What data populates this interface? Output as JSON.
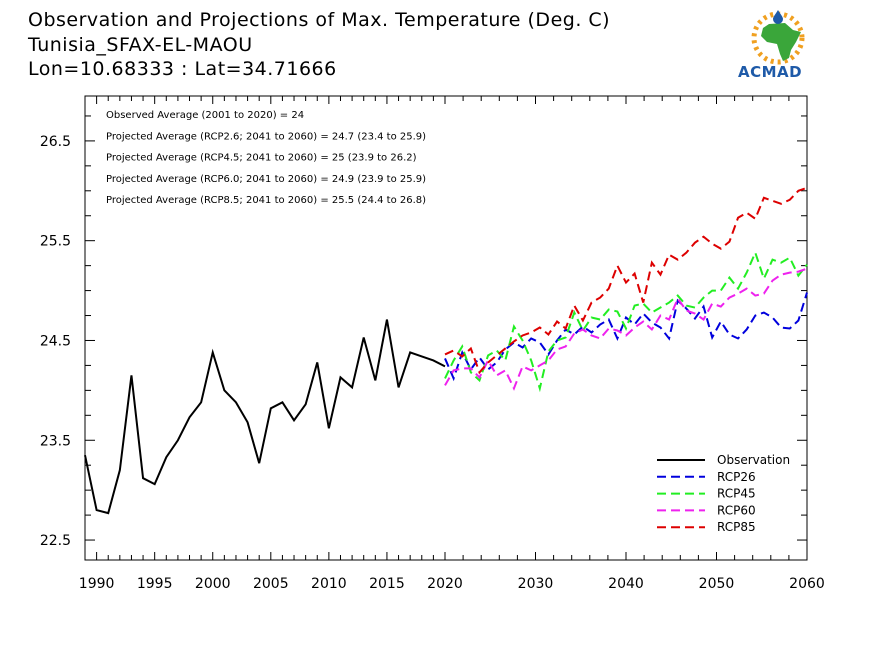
{
  "header": {
    "title": "Observation and Projections of Max. Temperature (Deg. C)",
    "station": "Tunisia_SFAX-EL-MAOU",
    "coords": "Lon=10.68333 : Lat=34.71666"
  },
  "logo": {
    "text": "ACMAD",
    "colors": {
      "orange": "#f0a020",
      "green": "#3aa63a",
      "blue": "#1e5aa8"
    }
  },
  "chart_data": {
    "type": "line",
    "title": "Observation and Projections of Max. Temperature (Deg. C)",
    "xlabel": "",
    "ylabel": "",
    "xlim": [
      1989,
      2060
    ],
    "ylim": [
      22.3,
      26.95
    ],
    "x_ticks": [
      "1990",
      "1995",
      "2000",
      "2005",
      "2010",
      "2015",
      "2020",
      "2030",
      "2040",
      "2050",
      "2060"
    ],
    "y_ticks": [
      "22.5",
      "23.5",
      "24.5",
      "25.5",
      "26.5"
    ],
    "grid": false,
    "legend_position": "bottom-right",
    "stats": [
      "Observed Average (2001 to 2020) = 24",
      "Projected Average (RCP2.6; 2041 to 2060) = 24.7 (23.4 to 25.9)",
      "Projected Average (RCP4.5; 2041 to 2060) = 25 (23.9 to 26.2)",
      "Projected Average (RCP6.0; 2041 to 2060) = 24.9 (23.9 to 25.9)",
      "Projected Average (RCP8.5; 2041 to 2060) = 25.5 (24.4 to 26.8)"
    ],
    "observation": {
      "name": "Observation",
      "color": "#000000",
      "dashed": false,
      "x": [
        1989,
        1990,
        1991,
        1992,
        1993,
        1994,
        1995,
        1996,
        1997,
        1998,
        1999,
        2000,
        2001,
        2002,
        2003,
        2004,
        2005,
        2006,
        2007,
        2008,
        2009,
        2010,
        2011,
        2012,
        2013,
        2014,
        2015,
        2016,
        2017,
        2018,
        2019,
        2020
      ],
      "values": [
        23.35,
        22.8,
        22.77,
        23.2,
        24.15,
        23.12,
        23.06,
        23.33,
        23.5,
        23.73,
        23.88,
        24.38,
        24.0,
        23.88,
        23.68,
        23.27,
        23.82,
        23.88,
        23.7,
        23.86,
        24.28,
        23.62,
        24.13,
        24.03,
        24.53,
        24.1,
        24.71,
        24.03,
        24.38,
        24.34,
        24.3,
        24.24
      ]
    },
    "series": [
      {
        "name": "RCP26",
        "color": "#0000dd",
        "dashed": true,
        "start": 2020,
        "values": [
          24.32,
          24.12,
          24.38,
          24.21,
          24.33,
          24.21,
          24.28,
          24.41,
          24.48,
          24.43,
          24.52,
          24.48,
          24.36,
          24.5,
          24.61,
          24.56,
          24.64,
          24.58,
          24.66,
          24.71,
          24.52,
          24.73,
          24.66,
          24.77,
          24.68,
          24.63,
          24.52,
          24.9,
          24.82,
          24.72,
          24.84,
          24.53,
          24.69,
          24.56,
          24.52,
          24.61,
          24.75,
          24.78,
          24.73,
          24.63,
          24.62,
          24.7,
          24.98
        ]
      },
      {
        "name": "RCP45",
        "color": "#22ee22",
        "dashed": true,
        "start": 2020,
        "values": [
          24.12,
          24.3,
          24.44,
          24.18,
          24.1,
          24.35,
          24.4,
          24.3,
          24.64,
          24.5,
          24.3,
          24.02,
          24.39,
          24.5,
          24.53,
          24.78,
          24.6,
          24.73,
          24.71,
          24.81,
          24.79,
          24.62,
          24.85,
          24.87,
          24.78,
          24.83,
          24.88,
          24.95,
          24.85,
          24.83,
          24.93,
          25.0,
          25.0,
          25.13,
          25.02,
          25.18,
          25.38,
          25.12,
          25.31,
          25.28,
          25.33,
          25.15,
          25.26
        ]
      },
      {
        "name": "RCP60",
        "color": "#ee22ee",
        "dashed": true,
        "start": 2020,
        "values": [
          24.05,
          24.2,
          24.22,
          24.22,
          24.13,
          24.3,
          24.15,
          24.2,
          24.02,
          24.24,
          24.2,
          24.25,
          24.3,
          24.41,
          24.44,
          24.57,
          24.61,
          24.55,
          24.52,
          24.62,
          24.6,
          24.55,
          24.63,
          24.69,
          24.61,
          24.75,
          24.71,
          24.92,
          24.8,
          24.77,
          24.71,
          24.87,
          24.84,
          24.93,
          24.97,
          25.02,
          24.95,
          24.97,
          25.1,
          25.16,
          25.18,
          25.19,
          25.22
        ]
      },
      {
        "name": "RCP85",
        "color": "#dd0000",
        "dashed": true,
        "start": 2020,
        "values": [
          24.36,
          24.4,
          24.34,
          24.42,
          24.18,
          24.28,
          24.35,
          24.42,
          24.49,
          24.55,
          24.58,
          24.63,
          24.56,
          24.69,
          24.62,
          24.85,
          24.7,
          24.88,
          24.93,
          25.02,
          25.25,
          25.08,
          25.17,
          24.88,
          25.28,
          25.16,
          25.36,
          25.31,
          25.38,
          25.48,
          25.54,
          25.47,
          25.42,
          25.49,
          25.73,
          25.78,
          25.72,
          25.93,
          25.9,
          25.87,
          25.91,
          26.0,
          26.03
        ]
      }
    ]
  }
}
